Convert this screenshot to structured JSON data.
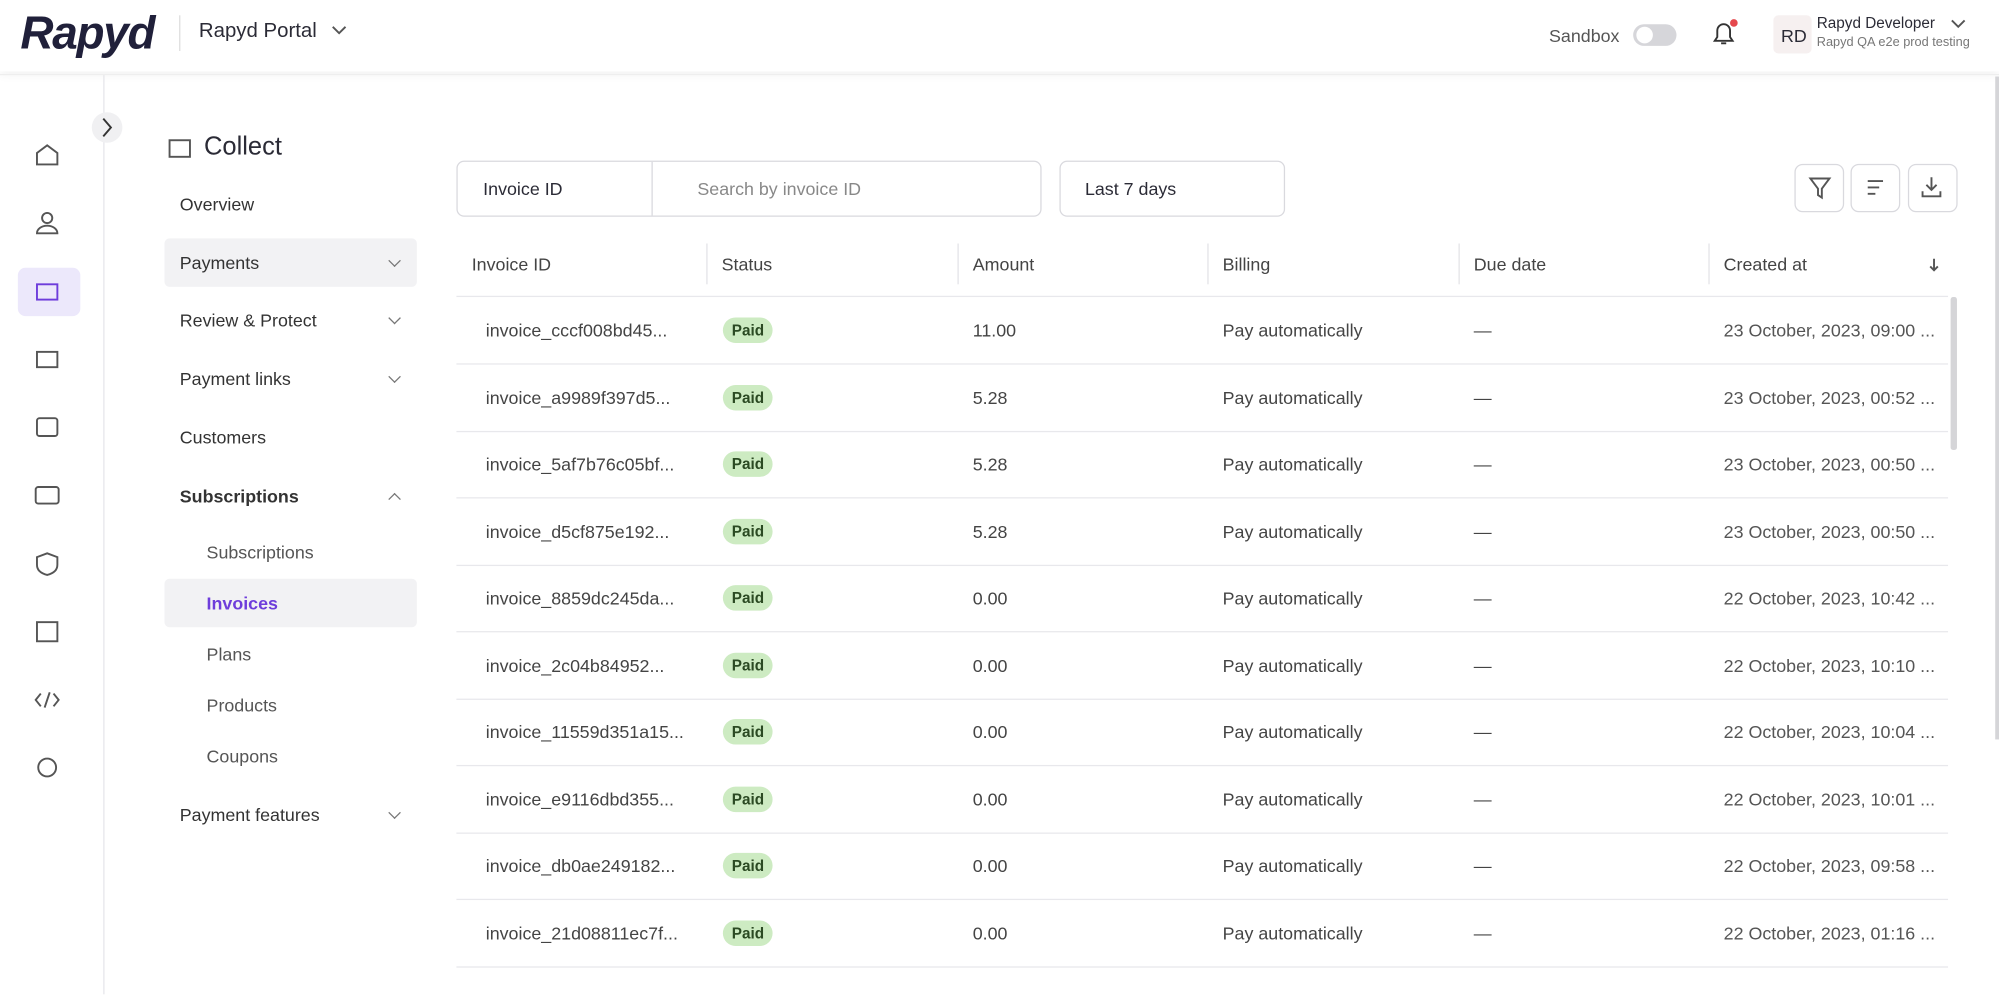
{
  "header": {
    "logo": "Rapyd",
    "portal": "Rapyd Portal",
    "sandbox": "Sandbox",
    "avatar": "RD",
    "user_name": "Rapyd Developer",
    "user_org": "Rapyd QA e2e prod testing"
  },
  "section_title": "Collect",
  "nav": [
    {
      "label": "Overview"
    },
    {
      "label": "Payments"
    },
    {
      "label": "Review & Protect"
    },
    {
      "label": "Payment links"
    },
    {
      "label": "Customers"
    },
    {
      "label": "Subscriptions",
      "children": [
        "Subscriptions",
        "Invoices",
        "Plans",
        "Products",
        "Coupons"
      ]
    },
    {
      "label": "Payment features"
    }
  ],
  "filters": {
    "field": "Invoice ID",
    "search_placeholder": "Search by invoice ID",
    "date_range": "Last 7 days"
  },
  "table": {
    "columns": [
      "Invoice ID",
      "Status",
      "Amount",
      "Billing",
      "Due date",
      "Created at"
    ],
    "rows": [
      [
        "invoice_cccf008bd45...",
        "Paid",
        "11.00",
        "Pay automatically",
        "—",
        "23 October, 2023, 09:00 ..."
      ],
      [
        "invoice_a9989f397d5...",
        "Paid",
        "5.28",
        "Pay automatically",
        "—",
        "23 October, 2023, 00:52 ..."
      ],
      [
        "invoice_5af7b76c05bf...",
        "Paid",
        "5.28",
        "Pay automatically",
        "—",
        "23 October, 2023, 00:50 ..."
      ],
      [
        "invoice_d5cf875e192...",
        "Paid",
        "5.28",
        "Pay automatically",
        "—",
        "23 October, 2023, 00:50 ..."
      ],
      [
        "invoice_8859dc245da...",
        "Paid",
        "0.00",
        "Pay automatically",
        "—",
        "22 October, 2023, 10:42 ..."
      ],
      [
        "invoice_2c04b84952...",
        "Paid",
        "0.00",
        "Pay automatically",
        "—",
        "22 October, 2023, 10:10 ..."
      ],
      [
        "invoice_11559d351a15...",
        "Paid",
        "0.00",
        "Pay automatically",
        "—",
        "22 October, 2023, 10:04 ..."
      ],
      [
        "invoice_e9116dbd355...",
        "Paid",
        "0.00",
        "Pay automatically",
        "—",
        "22 October, 2023, 10:01 ..."
      ],
      [
        "invoice_db0ae249182...",
        "Paid",
        "0.00",
        "Pay automatically",
        "—",
        "22 October, 2023, 09:58 ..."
      ],
      [
        "invoice_21d08811ec7f...",
        "Paid",
        "0.00",
        "Pay automatically",
        "—",
        "22 October, 2023, 01:16 ..."
      ]
    ]
  }
}
